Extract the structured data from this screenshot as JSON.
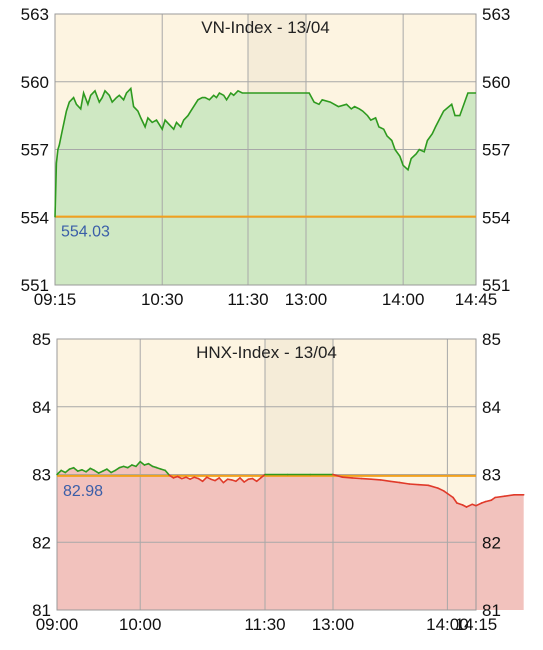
{
  "chart_data": [
    {
      "type": "area",
      "title": "VN-Index - 13/04",
      "reference_label": "554.03",
      "reference_value": 554.03,
      "ylim": [
        551,
        563
      ],
      "y_ticks": [
        563,
        560,
        557,
        554,
        551
      ],
      "x_ticks": [
        "09:15",
        "10:30",
        "11:30",
        "13:00",
        "14:00",
        "14:45"
      ],
      "x_tick_minutes": [
        555,
        630,
        690,
        780,
        840,
        885
      ],
      "break": {
        "start": 690,
        "end": 780
      },
      "grid": true,
      "series": [
        {
          "x": [
            555,
            556,
            557,
            558,
            560,
            563,
            565,
            568,
            570,
            573,
            575,
            578,
            580,
            583,
            586,
            588,
            590,
            593,
            595,
            598,
            600,
            603,
            605,
            608,
            610,
            613,
            615,
            618,
            620,
            623,
            626,
            628,
            630,
            632,
            635,
            638,
            640,
            643,
            645,
            648,
            650,
            653,
            655,
            658,
            660,
            663,
            666,
            668,
            670,
            673,
            675,
            678,
            680,
            683,
            686,
            688,
            690,
            720,
            750,
            780,
            782,
            785,
            788,
            790,
            795,
            800,
            805,
            808,
            810,
            813,
            815,
            818,
            820,
            823,
            825,
            828,
            830,
            833,
            835,
            838,
            840,
            843,
            845,
            848,
            850,
            853,
            855,
            858,
            860,
            865,
            870,
            872,
            875,
            880,
            885
          ],
          "values": [
            554.0,
            556.4,
            557.0,
            557.2,
            557.8,
            558.7,
            559.1,
            559.3,
            559.0,
            558.8,
            559.5,
            559.0,
            559.4,
            559.6,
            559.1,
            559.3,
            559.6,
            559.4,
            559.1,
            559.3,
            559.4,
            559.2,
            559.5,
            559.7,
            558.9,
            558.7,
            558.4,
            558.0,
            558.4,
            558.2,
            558.3,
            558.1,
            557.9,
            558.3,
            558.1,
            557.9,
            558.2,
            558.0,
            558.3,
            558.5,
            558.7,
            559.0,
            559.2,
            559.3,
            559.3,
            559.2,
            559.4,
            559.3,
            559.5,
            559.4,
            559.2,
            559.5,
            559.4,
            559.6,
            559.5,
            559.5,
            559.5,
            559.5,
            559.5,
            559.5,
            559.5,
            559.1,
            559.0,
            559.2,
            559.1,
            558.9,
            559.0,
            558.8,
            558.9,
            558.8,
            558.7,
            558.5,
            558.3,
            558.4,
            558.0,
            557.9,
            557.6,
            557.4,
            557.0,
            556.7,
            556.3,
            556.1,
            556.6,
            556.8,
            557.0,
            556.9,
            557.4,
            557.7,
            558.0,
            558.7,
            559.0,
            558.5,
            558.5,
            559.5,
            559.5
          ]
        }
      ]
    },
    {
      "type": "area",
      "title": "HNX-Index - 13/04",
      "reference_label": "82.98",
      "reference_value": 82.98,
      "ylim": [
        81,
        85
      ],
      "y_ticks": [
        85,
        84,
        83,
        82,
        81
      ],
      "x_ticks": [
        "09:00",
        "10:00",
        "11:30",
        "13:00",
        "14:00",
        "14:15"
      ],
      "x_tick_minutes": [
        540,
        600,
        690,
        780,
        840,
        855
      ],
      "break": {
        "start": 690,
        "end": 780
      },
      "grid": true,
      "series": [
        {
          "x": [
            540,
            543,
            546,
            549,
            552,
            555,
            558,
            561,
            564,
            567,
            570,
            573,
            576,
            579,
            582,
            585,
            588,
            591,
            594,
            597,
            600,
            603,
            606,
            609,
            612,
            615,
            618,
            621,
            624,
            627,
            630,
            633,
            636,
            639,
            642,
            645,
            648,
            651,
            654,
            657,
            660,
            663,
            666,
            669,
            672,
            675,
            678,
            681,
            684,
            687,
            690,
            720,
            750,
            780,
            785,
            790,
            795,
            800,
            805,
            810,
            815,
            820,
            825,
            830,
            835,
            838,
            840,
            843,
            845,
            848,
            850,
            853,
            855,
            858,
            860,
            863,
            865,
            870,
            875,
            880
          ],
          "values": [
            83.0,
            83.06,
            83.03,
            83.08,
            83.1,
            83.05,
            83.07,
            83.04,
            83.09,
            83.06,
            83.02,
            83.05,
            83.08,
            83.03,
            83.06,
            83.1,
            83.12,
            83.1,
            83.14,
            83.12,
            83.19,
            83.14,
            83.16,
            83.12,
            83.1,
            83.08,
            83.06,
            82.99,
            82.95,
            82.97,
            82.94,
            82.96,
            82.93,
            82.96,
            82.94,
            82.9,
            82.96,
            82.93,
            82.91,
            82.95,
            82.88,
            82.93,
            82.92,
            82.9,
            82.95,
            82.89,
            82.93,
            82.94,
            82.9,
            82.95,
            83.0,
            83.0,
            83.0,
            83.0,
            82.96,
            82.95,
            82.94,
            82.93,
            82.92,
            82.9,
            82.88,
            82.86,
            82.85,
            82.84,
            82.8,
            82.76,
            82.72,
            82.66,
            82.58,
            82.55,
            82.52,
            82.56,
            82.54,
            82.58,
            82.6,
            82.62,
            82.66,
            82.68,
            82.7,
            82.7
          ]
        }
      ]
    }
  ]
}
